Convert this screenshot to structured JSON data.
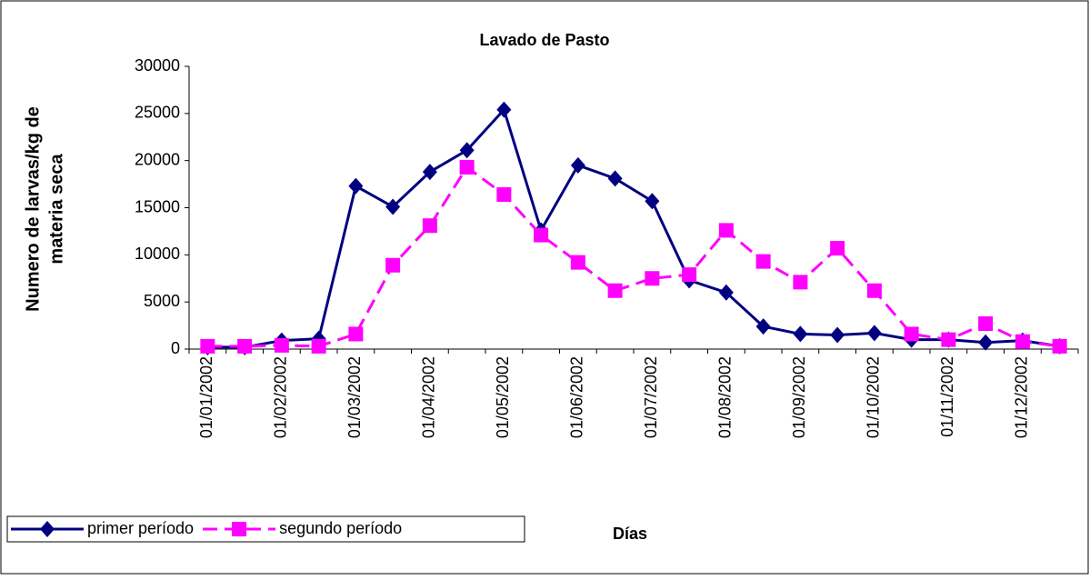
{
  "chart_data": {
    "type": "line",
    "title": "Lavado de Pasto",
    "x_label": "Días",
    "y_label": [
      "Numero de larvas/kg de",
      "materia seca"
    ],
    "categories": [
      "01/01/2002",
      null,
      "01/02/2002",
      null,
      "01/03/2002",
      null,
      "01/04/2002",
      null,
      "01/05/2002",
      null,
      "01/06/2002",
      null,
      "01/07/2002",
      null,
      "01/08/2002",
      null,
      "01/09/2002",
      null,
      "01/10/2002",
      null,
      "01/11/2002",
      null,
      "01/12/2002",
      null
    ],
    "series": [
      {
        "name": "primer período",
        "color": "#000080",
        "marker": "diamond",
        "dashed": false,
        "values": [
          200,
          200,
          900,
          1100,
          17300,
          15100,
          18800,
          21100,
          25400,
          12600,
          19500,
          18100,
          15700,
          7300,
          6000,
          2400,
          1600,
          1500,
          1700,
          1000,
          1000,
          700,
          900,
          300
        ]
      },
      {
        "name": "segundo período",
        "color": "#ff00ff",
        "marker": "square",
        "dashed": true,
        "values": [
          300,
          300,
          400,
          300,
          1600,
          8900,
          13100,
          19300,
          16400,
          12100,
          9200,
          6200,
          7500,
          7900,
          12600,
          9300,
          7100,
          10700,
          6200,
          1600,
          1000,
          2700,
          800,
          300
        ]
      }
    ],
    "ylim": [
      0,
      30000
    ],
    "yticks": [
      0,
      5000,
      10000,
      15000,
      20000,
      25000,
      30000
    ],
    "grid": false,
    "legend": "bottom-left"
  }
}
